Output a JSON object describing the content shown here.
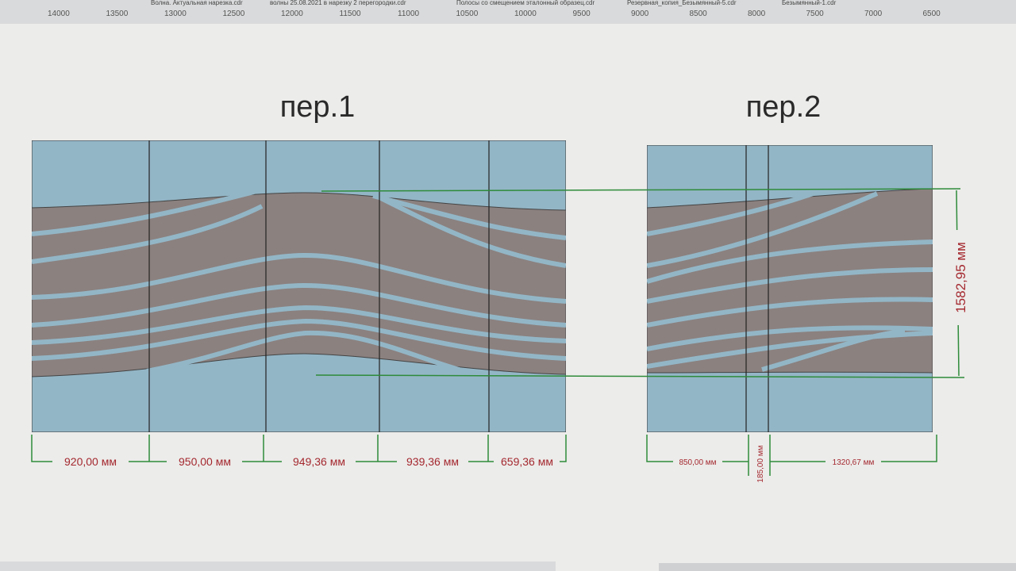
{
  "ruler": {
    "tabs": [
      "Волна. Актуальная нарезка.cdr",
      "волны 25.08.2021 в нарезку 2 перегородки.cdr",
      "Полосы со смещением эталонный образец.cdr",
      "Резервная_копия_Безымянный-5.cdr",
      "Безымянный-1.cdr"
    ],
    "labels": [
      "14000",
      "13500",
      "13000",
      "12500",
      "12000",
      "11500",
      "11000",
      "10500",
      "10000",
      "9500",
      "9000",
      "8500",
      "8000",
      "7500",
      "7000",
      "6500"
    ]
  },
  "panel1": {
    "title": "пер.1",
    "dims": [
      "920,00 мм",
      "950,00 мм",
      "949,36 мм",
      "939,36 мм",
      "659,36 мм"
    ]
  },
  "panel2": {
    "title": "пер.2",
    "dims": [
      "850,00 мм",
      "185,00 мм",
      "1320,67 мм"
    ],
    "height": "1582,95 мм"
  }
}
